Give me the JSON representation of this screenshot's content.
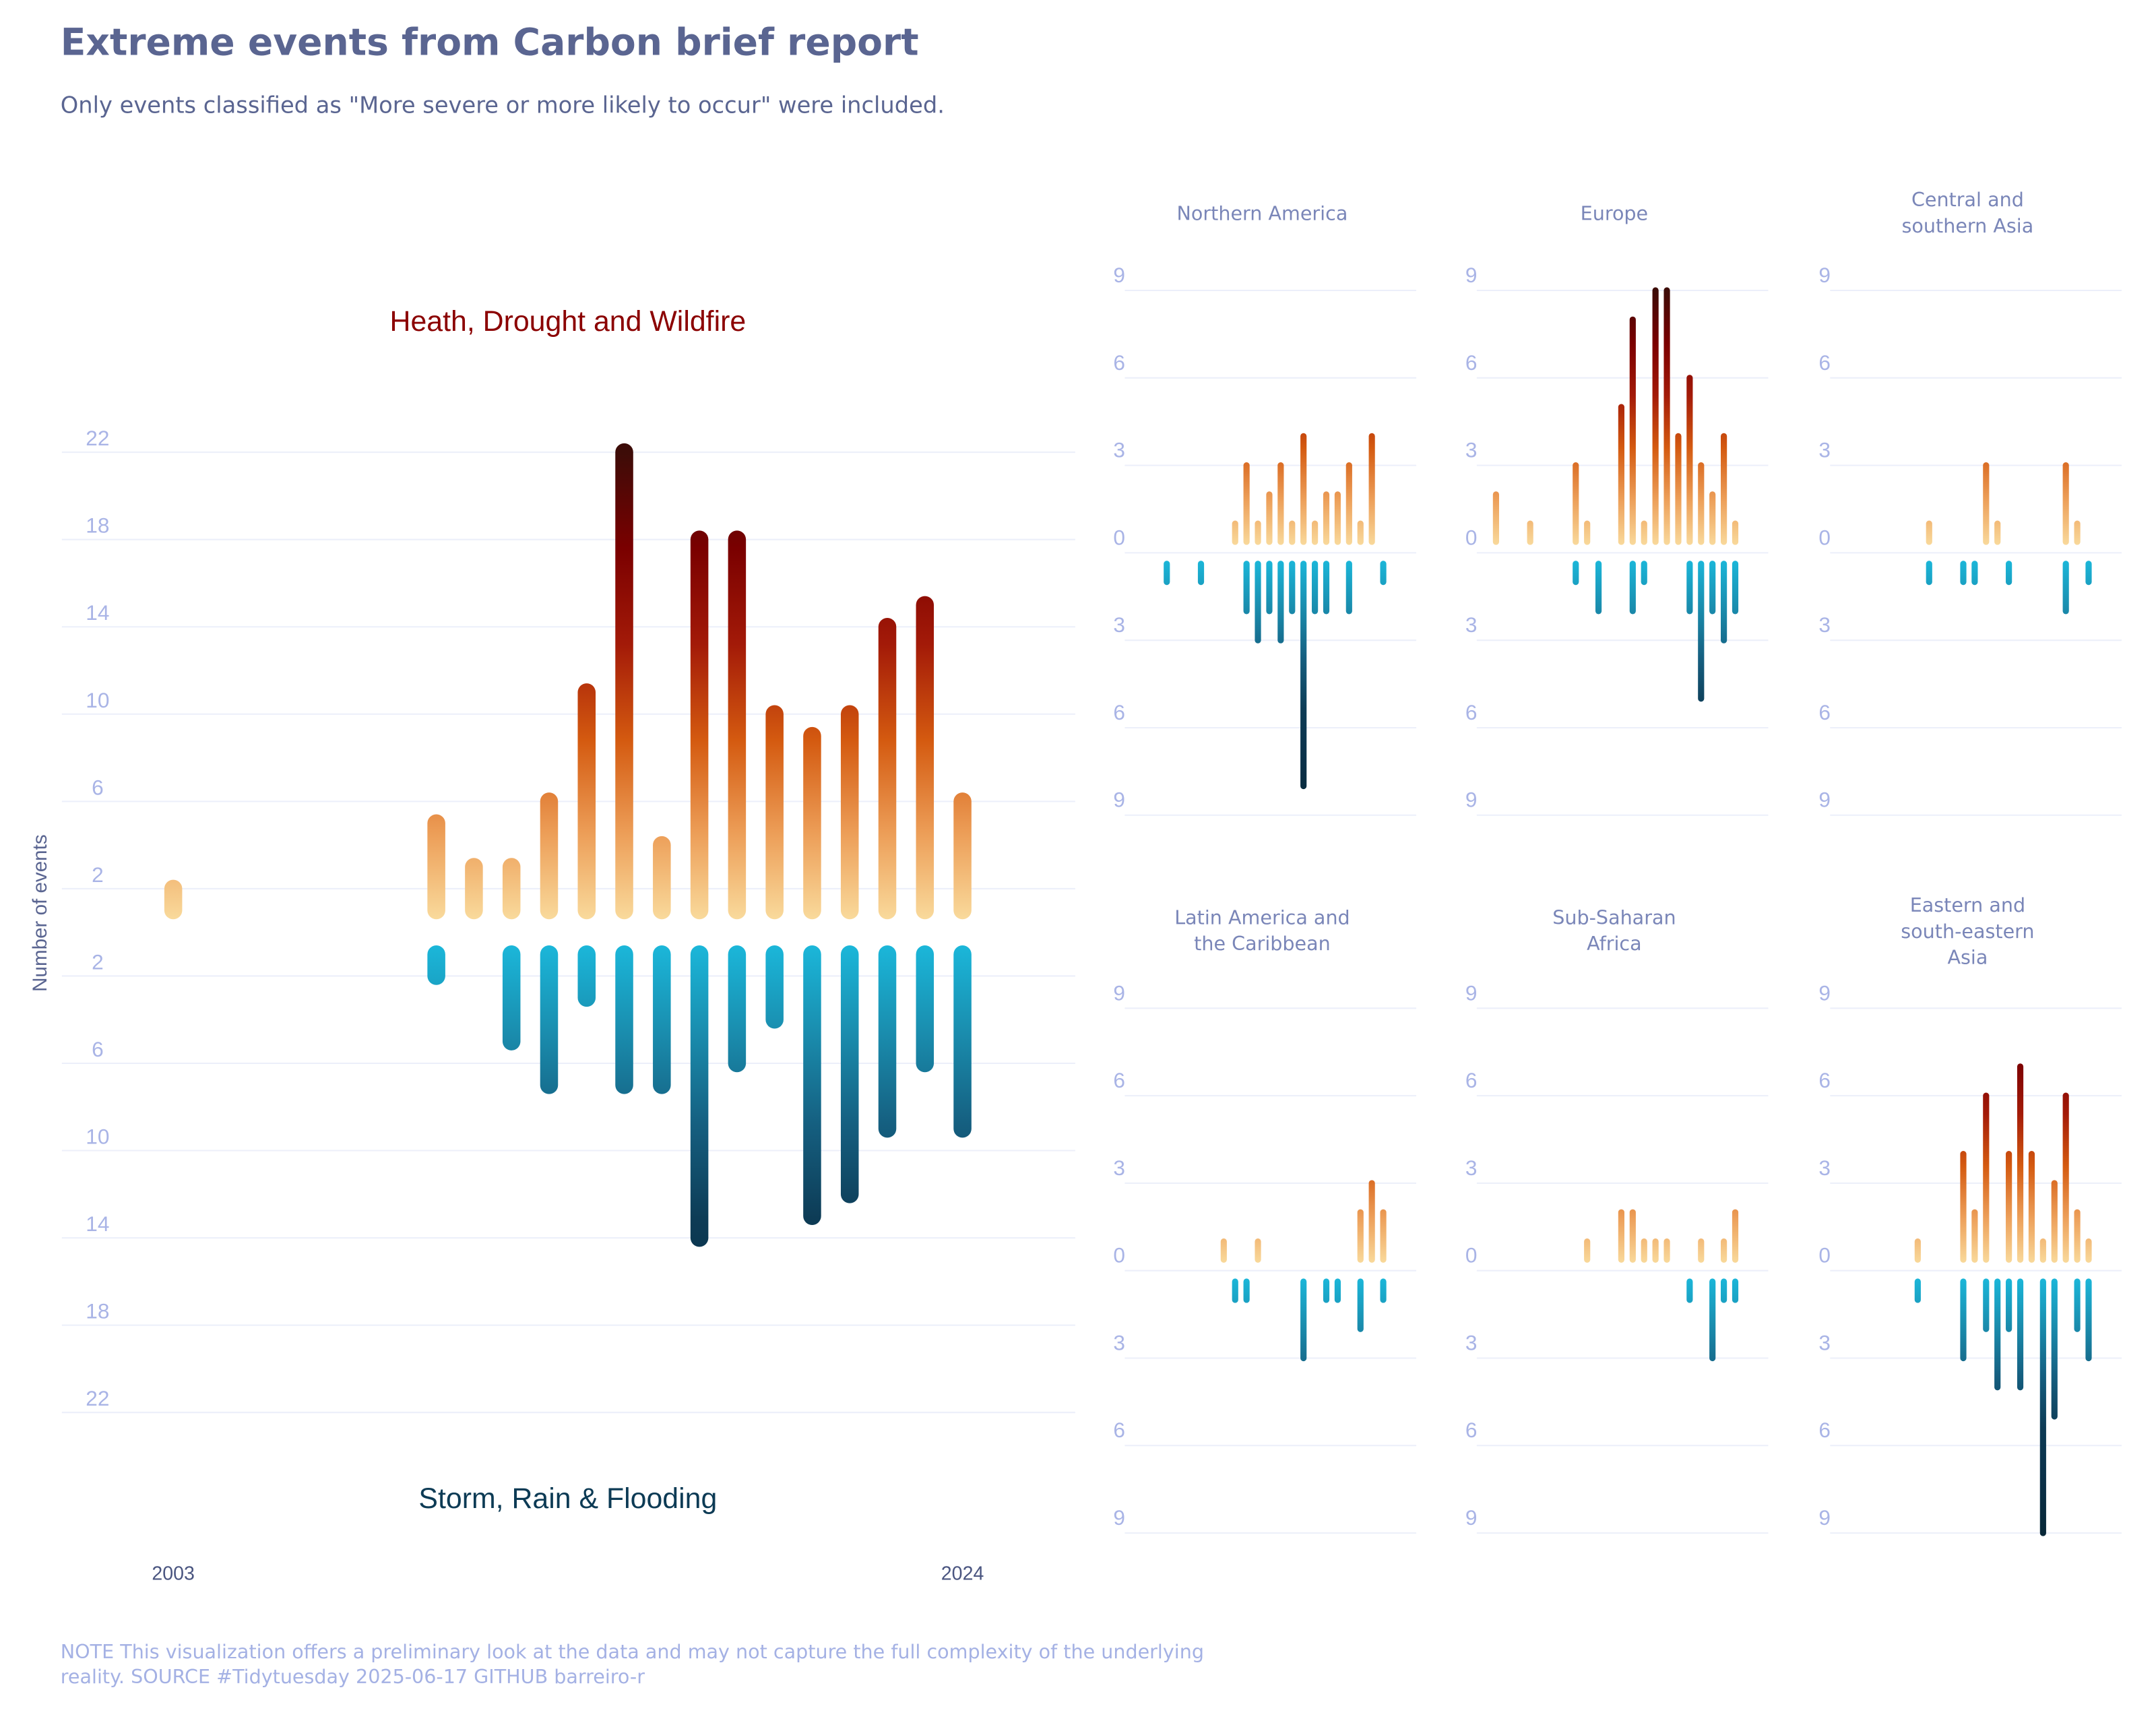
{
  "title": "Extreme events from Carbon brief report",
  "subtitle": "Only events classified as \"More severe or more likely to occur\" were included.",
  "caption": "NOTE This visualization offers a preliminary look at the data and may not capture the full complexity of the underlying reality. SOURCE #Tidytuesday 2025-06-17 GITHUB barreiro-r",
  "chart_data": [
    {
      "type": "diverging-bar",
      "ylabel": "Number of events",
      "x": [
        2003,
        2004,
        2005,
        2006,
        2007,
        2008,
        2009,
        2010,
        2011,
        2012,
        2013,
        2014,
        2015,
        2016,
        2017,
        2018,
        2019,
        2020,
        2021,
        2022,
        2023,
        2024
      ],
      "xlim": [
        2003,
        2024
      ],
      "xticks": [
        2003,
        2024
      ],
      "ylim": [
        0,
        22
      ],
      "yticks": [
        2,
        6,
        10,
        14,
        18,
        22
      ],
      "grid": true,
      "series": [
        {
          "name": "Heath, Drought and Wildfire",
          "label_color": "#8b0000",
          "color": [
            "#fbe3a6",
            "#eda05a",
            "#d45a10",
            "#a31a08",
            "#7a0000",
            "#3d0c08"
          ],
          "values": [
            2,
            null,
            null,
            null,
            null,
            null,
            null,
            5,
            3,
            3,
            6,
            11,
            22,
            4,
            18,
            18,
            10,
            9,
            10,
            14,
            15,
            6
          ]
        },
        {
          "name": "Storm, Rain & Flooding",
          "label_color": "#0d3b55",
          "color": [
            "#1bbde0",
            "#1a8fb0",
            "#155f80",
            "#0d3b55",
            "#0a3048",
            "#082838"
          ],
          "values": [
            null,
            null,
            null,
            null,
            null,
            null,
            null,
            2,
            null,
            5,
            7,
            3,
            7,
            7,
            14,
            6,
            4,
            13,
            12,
            9,
            6,
            9
          ]
        }
      ]
    },
    {
      "type": "diverging-bar",
      "title": "Northern America",
      "x": [
        2003,
        2004,
        2005,
        2006,
        2007,
        2008,
        2009,
        2010,
        2011,
        2012,
        2013,
        2014,
        2015,
        2016,
        2017,
        2018,
        2019,
        2020,
        2021,
        2022,
        2023,
        2024
      ],
      "xlim": [
        2003,
        2024
      ],
      "ylim": [
        0,
        9
      ],
      "yticks": [
        0,
        3,
        6,
        9
      ],
      "grid": true,
      "series": [
        {
          "color": [
            "#fbe3a6",
            "#eda05a",
            "#d45a10",
            "#a31a08",
            "#7a0000",
            "#3d0c08"
          ],
          "values": [
            null,
            null,
            null,
            null,
            null,
            null,
            null,
            null,
            1,
            3,
            1,
            2,
            3,
            1,
            4,
            1,
            2,
            2,
            3,
            1,
            4,
            null
          ]
        },
        {
          "color": [
            "#1bbde0",
            "#1a8fb0",
            "#155f80",
            "#0d3b55",
            "#0a3048",
            "#082838"
          ],
          "values": [
            null,
            null,
            1,
            null,
            null,
            1,
            null,
            null,
            null,
            2,
            3,
            2,
            3,
            2,
            8,
            2,
            2,
            null,
            2,
            null,
            null,
            1
          ]
        }
      ]
    },
    {
      "type": "diverging-bar",
      "title": "Europe",
      "x": [
        2003,
        2004,
        2005,
        2006,
        2007,
        2008,
        2009,
        2010,
        2011,
        2012,
        2013,
        2014,
        2015,
        2016,
        2017,
        2018,
        2019,
        2020,
        2021,
        2022,
        2023,
        2024
      ],
      "xlim": [
        2003,
        2024
      ],
      "ylim": [
        0,
        9
      ],
      "yticks": [
        0,
        3,
        6,
        9
      ],
      "grid": true,
      "series": [
        {
          "color": [
            "#fbe3a6",
            "#eda05a",
            "#d45a10",
            "#a31a08",
            "#7a0000",
            "#3d0c08"
          ],
          "values": [
            2,
            null,
            null,
            1,
            null,
            null,
            null,
            3,
            1,
            null,
            null,
            5,
            8,
            1,
            9,
            9,
            4,
            6,
            3,
            2,
            4,
            1
          ]
        },
        {
          "color": [
            "#1bbde0",
            "#1a8fb0",
            "#155f80",
            "#0d3b55",
            "#0a3048",
            "#082838"
          ],
          "values": [
            null,
            null,
            null,
            null,
            null,
            null,
            null,
            1,
            null,
            2,
            null,
            null,
            2,
            1,
            null,
            null,
            null,
            2,
            5,
            2,
            3,
            2
          ]
        }
      ]
    },
    {
      "type": "diverging-bar",
      "title": "Central and southern Asia",
      "x": [
        2003,
        2004,
        2005,
        2006,
        2007,
        2008,
        2009,
        2010,
        2011,
        2012,
        2013,
        2014,
        2015,
        2016,
        2017,
        2018,
        2019,
        2020,
        2021,
        2022,
        2023,
        2024
      ],
      "xlim": [
        2003,
        2024
      ],
      "ylim": [
        0,
        9
      ],
      "yticks": [
        0,
        3,
        6,
        9
      ],
      "grid": true,
      "series": [
        {
          "color": [
            "#fbe3a6",
            "#eda05a",
            "#d45a10",
            "#a31a08",
            "#7a0000",
            "#3d0c08"
          ],
          "values": [
            null,
            null,
            null,
            null,
            null,
            null,
            null,
            1,
            null,
            null,
            null,
            null,
            3,
            1,
            null,
            null,
            null,
            null,
            null,
            3,
            1,
            null
          ]
        },
        {
          "color": [
            "#1bbde0",
            "#1a8fb0",
            "#155f80",
            "#0d3b55",
            "#0a3048",
            "#082838"
          ],
          "values": [
            null,
            null,
            null,
            null,
            null,
            null,
            null,
            1,
            null,
            null,
            1,
            1,
            null,
            null,
            1,
            null,
            null,
            null,
            null,
            2,
            null,
            1
          ]
        }
      ]
    },
    {
      "type": "diverging-bar",
      "title": "Latin America and the Caribbean",
      "x": [
        2003,
        2004,
        2005,
        2006,
        2007,
        2008,
        2009,
        2010,
        2011,
        2012,
        2013,
        2014,
        2015,
        2016,
        2017,
        2018,
        2019,
        2020,
        2021,
        2022,
        2023,
        2024
      ],
      "xlim": [
        2003,
        2024
      ],
      "ylim": [
        0,
        9
      ],
      "yticks": [
        0,
        3,
        6,
        9
      ],
      "grid": true,
      "series": [
        {
          "color": [
            "#fbe3a6",
            "#eda05a",
            "#d45a10",
            "#a31a08",
            "#7a0000",
            "#3d0c08"
          ],
          "values": [
            null,
            null,
            null,
            null,
            null,
            null,
            null,
            1,
            null,
            null,
            1,
            null,
            null,
            null,
            null,
            null,
            null,
            null,
            null,
            2,
            3,
            2
          ]
        },
        {
          "color": [
            "#1bbde0",
            "#1a8fb0",
            "#155f80",
            "#0d3b55",
            "#0a3048",
            "#082838"
          ],
          "values": [
            null,
            null,
            null,
            null,
            null,
            null,
            null,
            null,
            1,
            1,
            null,
            null,
            null,
            null,
            3,
            null,
            1,
            1,
            null,
            2,
            null,
            1
          ]
        }
      ]
    },
    {
      "type": "diverging-bar",
      "title": "Sub-Saharan Africa",
      "x": [
        2003,
        2004,
        2005,
        2006,
        2007,
        2008,
        2009,
        2010,
        2011,
        2012,
        2013,
        2014,
        2015,
        2016,
        2017,
        2018,
        2019,
        2020,
        2021,
        2022,
        2023,
        2024
      ],
      "xlim": [
        2003,
        2024
      ],
      "ylim": [
        0,
        9
      ],
      "yticks": [
        0,
        3,
        6,
        9
      ],
      "grid": true,
      "series": [
        {
          "color": [
            "#fbe3a6",
            "#eda05a",
            "#d45a10",
            "#a31a08",
            "#7a0000",
            "#3d0c08"
          ],
          "values": [
            null,
            null,
            null,
            null,
            null,
            null,
            null,
            null,
            1,
            null,
            null,
            2,
            2,
            1,
            1,
            1,
            null,
            null,
            1,
            null,
            1,
            2
          ]
        },
        {
          "color": [
            "#1bbde0",
            "#1a8fb0",
            "#155f80",
            "#0d3b55",
            "#0a3048",
            "#082838"
          ],
          "values": [
            null,
            null,
            null,
            null,
            null,
            null,
            null,
            null,
            null,
            null,
            null,
            null,
            null,
            null,
            null,
            null,
            null,
            1,
            null,
            3,
            1,
            1
          ]
        }
      ]
    },
    {
      "type": "diverging-bar",
      "title": "Eastern and south-eastern Asia",
      "x": [
        2003,
        2004,
        2005,
        2006,
        2007,
        2008,
        2009,
        2010,
        2011,
        2012,
        2013,
        2014,
        2015,
        2016,
        2017,
        2018,
        2019,
        2020,
        2021,
        2022,
        2023,
        2024
      ],
      "xlim": [
        2003,
        2024
      ],
      "ylim": [
        0,
        9
      ],
      "yticks": [
        0,
        3,
        6,
        9
      ],
      "grid": true,
      "series": [
        {
          "color": [
            "#fbe3a6",
            "#eda05a",
            "#d45a10",
            "#a31a08",
            "#7a0000",
            "#3d0c08"
          ],
          "values": [
            null,
            null,
            null,
            null,
            null,
            null,
            1,
            null,
            null,
            null,
            4,
            2,
            6,
            null,
            4,
            7,
            4,
            1,
            3,
            6,
            2,
            1
          ]
        },
        {
          "color": [
            "#1bbde0",
            "#1a8fb0",
            "#155f80",
            "#0d3b55",
            "#0a3048",
            "#082838"
          ],
          "values": [
            null,
            null,
            null,
            null,
            null,
            null,
            1,
            null,
            null,
            null,
            3,
            null,
            2,
            4,
            2,
            4,
            null,
            9,
            5,
            null,
            2,
            3
          ]
        }
      ]
    }
  ]
}
